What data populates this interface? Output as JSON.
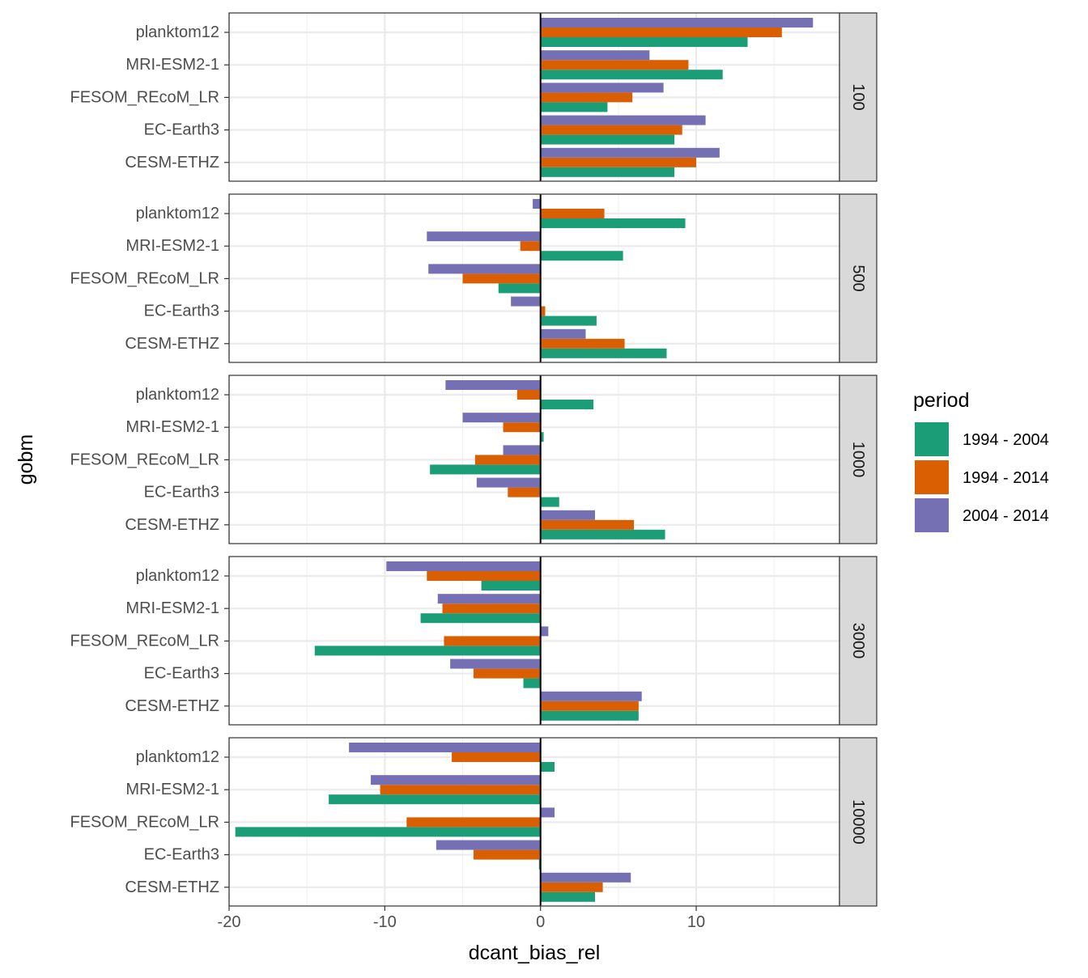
{
  "chart_data": {
    "type": "bar",
    "orientation": "horizontal",
    "facet_by": "depth",
    "xlabel": "dcant_bias_rel",
    "ylabel": "gobm",
    "xlim": [
      -20,
      19.2
    ],
    "xticks": [
      -20,
      -10,
      0,
      10
    ],
    "grid": true,
    "legend_position": "right",
    "legend_title": "period",
    "categories": [
      "planktom12",
      "MRI-ESM2-1",
      "FESOM_REcoM_LR",
      "EC-Earth3",
      "CESM-ETHZ"
    ],
    "series": [
      {
        "name": "1994 - 2004",
        "color": "#1b9e77"
      },
      {
        "name": "1994 - 2014",
        "color": "#d95f02"
      },
      {
        "name": "2004 - 2014",
        "color": "#7570b3"
      }
    ],
    "facets": [
      {
        "label": "100",
        "values": {
          "1994 - 2004": [
            13.3,
            11.7,
            4.3,
            8.6,
            8.6
          ],
          "1994 - 2014": [
            15.5,
            9.5,
            5.9,
            9.1,
            10.0
          ],
          "2004 - 2014": [
            17.5,
            7.0,
            7.9,
            10.6,
            11.5
          ]
        }
      },
      {
        "label": "500",
        "values": {
          "1994 - 2004": [
            9.3,
            5.3,
            -2.7,
            3.6,
            8.1
          ],
          "1994 - 2014": [
            4.1,
            -1.3,
            -5.0,
            0.3,
            5.4
          ],
          "2004 - 2014": [
            -0.5,
            -7.3,
            -7.2,
            -1.9,
            2.9
          ]
        }
      },
      {
        "label": "1000",
        "values": {
          "1994 - 2004": [
            3.4,
            0.2,
            -7.1,
            1.2,
            8.0
          ],
          "1994 - 2014": [
            -1.5,
            -2.4,
            -4.2,
            -2.1,
            6.0
          ],
          "2004 - 2014": [
            -6.1,
            -5.0,
            -2.4,
            -4.1,
            3.5
          ]
        }
      },
      {
        "label": "3000",
        "values": {
          "1994 - 2004": [
            -3.8,
            -7.7,
            -14.5,
            -1.1,
            6.3
          ],
          "1994 - 2014": [
            -7.3,
            -6.3,
            -6.2,
            -4.3,
            6.3
          ],
          "2004 - 2014": [
            -9.9,
            -6.6,
            0.5,
            -5.8,
            6.5
          ]
        }
      },
      {
        "label": "10000",
        "values": {
          "1994 - 2004": [
            0.9,
            -13.6,
            -19.6,
            -0.1,
            3.5
          ],
          "1994 - 2014": [
            -5.7,
            -10.3,
            -8.6,
            -4.3,
            4.0
          ],
          "2004 - 2014": [
            -12.3,
            -10.9,
            0.9,
            -6.7,
            5.8
          ]
        }
      }
    ]
  }
}
